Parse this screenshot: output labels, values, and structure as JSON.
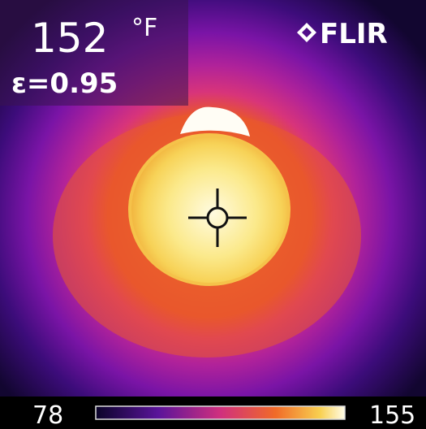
{
  "reading": {
    "value": "152",
    "unit": "°F",
    "emissivity": "ε=0.95"
  },
  "brand": "FLIR",
  "scale": {
    "min": "78",
    "max": "155"
  }
}
